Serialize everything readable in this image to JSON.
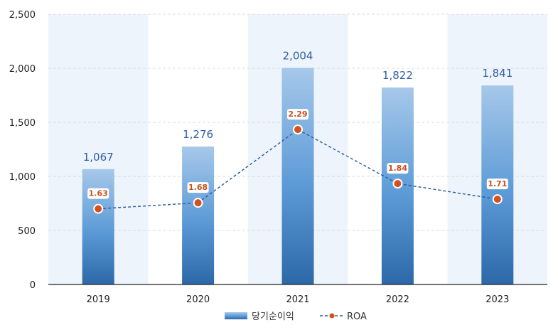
{
  "chart_data": {
    "type": "bar",
    "categories": [
      "2019",
      "2020",
      "2021",
      "2022",
      "2023"
    ],
    "series": [
      {
        "name": "당기순이익",
        "type": "bar",
        "values": [
          1067,
          1276,
          2004,
          1822,
          1841
        ],
        "labels": [
          "1,067",
          "1,276",
          "2,004",
          "1,822",
          "1,841"
        ],
        "color": "#4a86c8"
      },
      {
        "name": "ROA",
        "type": "line",
        "axis": "secondary",
        "values": [
          1.63,
          1.68,
          2.29,
          1.84,
          1.71
        ],
        "labels": [
          "1.63",
          "1.68",
          "2.29",
          "1.84",
          "1.71"
        ],
        "color": "#2f5fa8",
        "marker_color": "#d4501c"
      }
    ],
    "ylim": [
      0,
      2500
    ],
    "yticks": [
      0,
      500,
      1000,
      1500,
      2000,
      2500
    ],
    "ytick_labels": [
      "0",
      "500",
      "1,000",
      "1,500",
      "2,000",
      "2,500"
    ],
    "grid": true,
    "legend": "bottom-center",
    "band_color": "#eef4fb"
  }
}
